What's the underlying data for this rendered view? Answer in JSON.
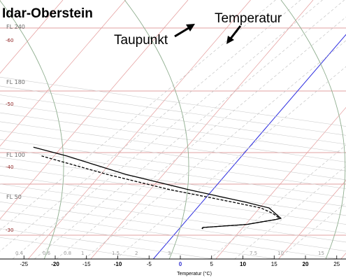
{
  "chart_data": {
    "type": "line",
    "diagram": "skew-T log-P",
    "title": "Idar-Oberstein",
    "xlabel": "Temperatur (°C)",
    "xlim": [
      -27,
      26
    ],
    "x_ticks": [
      "-25",
      "-20",
      "-15",
      "-10",
      "-5",
      "0",
      "5",
      "10",
      "15",
      "20",
      "25"
    ],
    "flight_levels": [
      "FL 240",
      "FL 180",
      "FL 100",
      "FL 50"
    ],
    "left_temperature_labels": [
      "-60",
      "-50",
      "-40",
      "-30"
    ],
    "mixing_ratio_labels": [
      "0.4",
      "0.6",
      "0.8",
      "1",
      "1.5",
      "2",
      "3",
      "7.5",
      "10",
      "15"
    ],
    "annotations": [
      "Temperatur",
      "Taupunkt"
    ],
    "series": [
      {
        "style": "solid",
        "color": "#000000",
        "points": [
          {
            "pressure_hpa": 965,
            "temp_c": 3.8
          },
          {
            "pressure_hpa": 960,
            "temp_c": 3.6
          },
          {
            "pressure_hpa": 950,
            "temp_c": 3.6
          },
          {
            "pressure_hpa": 915,
            "temp_c": 10.2
          },
          {
            "pressure_hpa": 862,
            "temp_c": 14.2
          },
          {
            "pressure_hpa": 850,
            "temp_c": 14.8
          },
          {
            "pressure_hpa": 800,
            "temp_c": 13.2
          },
          {
            "pressure_hpa": 750,
            "temp_c": 11.5
          },
          {
            "pressure_hpa": 700,
            "temp_c": 7.0
          },
          {
            "pressure_hpa": 600,
            "temp_c": -4.0
          },
          {
            "pressure_hpa": 500,
            "temp_c": -16.0
          },
          {
            "pressure_hpa": 400,
            "temp_c": -28.0
          },
          {
            "pressure_hpa": 360,
            "temp_c": -34.5
          }
        ]
      },
      {
        "style": "dashed",
        "color": "#000000",
        "points": [
          {
            "pressure_hpa": 960,
            "temp_c": 3.6
          },
          {
            "pressure_hpa": 950,
            "temp_c": 3.6
          },
          {
            "pressure_hpa": 915,
            "temp_c": 10.2
          },
          {
            "pressure_hpa": 862,
            "temp_c": 14.2
          },
          {
            "pressure_hpa": 850,
            "temp_c": 14.6
          },
          {
            "pressure_hpa": 800,
            "temp_c": 12.8
          },
          {
            "pressure_hpa": 750,
            "temp_c": 10.2
          },
          {
            "pressure_hpa": 700,
            "temp_c": 5.0
          },
          {
            "pressure_hpa": 600,
            "temp_c": -7.0
          },
          {
            "pressure_hpa": 500,
            "temp_c": -19.0
          },
          {
            "pressure_hpa": 400,
            "temp_c": -32.0
          }
        ]
      }
    ],
    "colors": {
      "isotherm": "#e49a9a",
      "zero_isotherm": "#2a2ae0",
      "dry_adiabat": "#c9c9c9",
      "moist_adiabat": "#8fae8f",
      "mixing_ratio": "#bdbdbd",
      "flight_level": "#d88080"
    },
    "grid": true
  }
}
